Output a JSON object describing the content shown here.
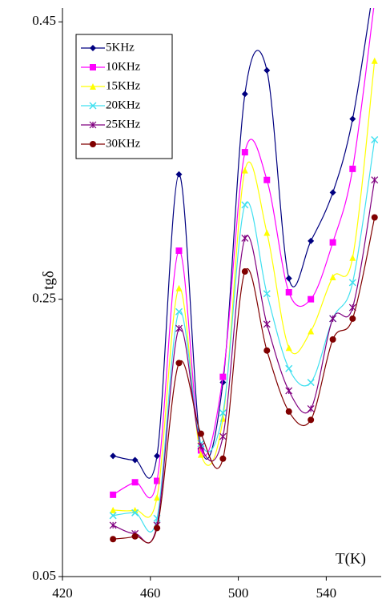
{
  "chart_data": {
    "type": "line",
    "x_label": "T(K)",
    "y_label": "tgδ",
    "x": [
      443,
      453,
      463,
      473,
      483,
      493,
      503,
      513,
      523,
      533,
      543,
      552,
      562
    ],
    "xlim": [
      420,
      565
    ],
    "xticks": [
      420,
      460,
      500,
      540
    ],
    "ylim": [
      0.05,
      0.46
    ],
    "yticks": [
      0.05,
      0.25,
      0.45
    ],
    "legend": "top-left",
    "smooth": true,
    "series": [
      {
        "name": "5KHz",
        "color": "#000080",
        "marker": "diamond",
        "values": [
          0.137,
          0.134,
          0.137,
          0.34,
          0.144,
          0.19,
          0.398,
          0.415,
          0.265,
          0.292,
          0.327,
          0.38,
          0.48
        ]
      },
      {
        "name": "10KHz",
        "color": "#ff00ff",
        "marker": "square",
        "values": [
          0.109,
          0.118,
          0.119,
          0.285,
          0.141,
          0.194,
          0.356,
          0.336,
          0.255,
          0.25,
          0.291,
          0.344,
          0.465
        ]
      },
      {
        "name": "15KHz",
        "color": "#ffff00",
        "marker": "triangle",
        "values": [
          0.098,
          0.098,
          0.107,
          0.258,
          0.138,
          0.164,
          0.343,
          0.298,
          0.215,
          0.227,
          0.266,
          0.28,
          0.422
        ]
      },
      {
        "name": "20KHz",
        "color": "#40e0f0",
        "marker": "x",
        "values": [
          0.094,
          0.096,
          0.092,
          0.241,
          0.146,
          0.168,
          0.318,
          0.254,
          0.2,
          0.19,
          0.236,
          0.262,
          0.365
        ]
      },
      {
        "name": "25KHz",
        "color": "#800080",
        "marker": "star",
        "values": [
          0.087,
          0.081,
          0.087,
          0.229,
          0.144,
          0.151,
          0.294,
          0.232,
          0.184,
          0.171,
          0.236,
          0.244,
          0.336
        ]
      },
      {
        "name": "30KHz",
        "color": "#800000",
        "marker": "circle",
        "values": [
          0.077,
          0.079,
          0.085,
          0.204,
          0.153,
          0.135,
          0.27,
          0.213,
          0.169,
          0.163,
          0.221,
          0.236,
          0.309
        ]
      }
    ]
  }
}
